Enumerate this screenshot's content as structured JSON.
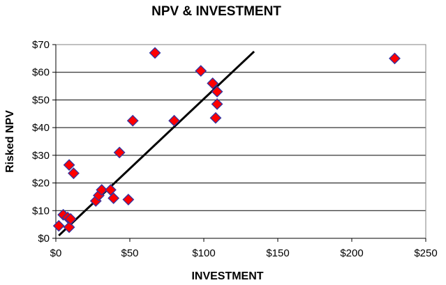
{
  "chart_data": {
    "type": "scatter",
    "title": "NPV & INVESTMENT",
    "xlabel": "INVESTMENT",
    "ylabel": "Risked NPV",
    "xlim": [
      0,
      250
    ],
    "ylim": [
      0,
      70
    ],
    "x_ticks": [
      0,
      50,
      100,
      150,
      200,
      250
    ],
    "y_ticks": [
      0,
      10,
      20,
      30,
      40,
      50,
      60,
      70
    ],
    "x_tick_labels": [
      "$0",
      "$50",
      "$100",
      "$150",
      "$200",
      "$250"
    ],
    "y_tick_labels": [
      "$0",
      "$10",
      "$20",
      "$30",
      "$40",
      "$50",
      "$60",
      "$70"
    ],
    "grid": "horizontal",
    "marker": "diamond",
    "marker_fill": "#ff0000",
    "marker_stroke": "#3333a0",
    "points": [
      {
        "x": 2,
        "y": 4.5
      },
      {
        "x": 5,
        "y": 8.5
      },
      {
        "x": 8,
        "y": 7.5
      },
      {
        "x": 9,
        "y": 4
      },
      {
        "x": 10,
        "y": 7
      },
      {
        "x": 9,
        "y": 26.5
      },
      {
        "x": 12,
        "y": 23.5
      },
      {
        "x": 27,
        "y": 13.5
      },
      {
        "x": 29,
        "y": 15.5
      },
      {
        "x": 31,
        "y": 17.5
      },
      {
        "x": 37,
        "y": 17.5
      },
      {
        "x": 39,
        "y": 14.5
      },
      {
        "x": 43,
        "y": 31
      },
      {
        "x": 49,
        "y": 14
      },
      {
        "x": 52,
        "y": 42.5
      },
      {
        "x": 67,
        "y": 67
      },
      {
        "x": 80,
        "y": 42.5
      },
      {
        "x": 98,
        "y": 60.5
      },
      {
        "x": 106,
        "y": 56
      },
      {
        "x": 109,
        "y": 53
      },
      {
        "x": 109,
        "y": 48.5
      },
      {
        "x": 108,
        "y": 43.5
      },
      {
        "x": 229,
        "y": 65
      }
    ],
    "trendline": {
      "x": [
        2,
        134
      ],
      "y": [
        1,
        67.5
      ],
      "color": "#000000"
    }
  }
}
